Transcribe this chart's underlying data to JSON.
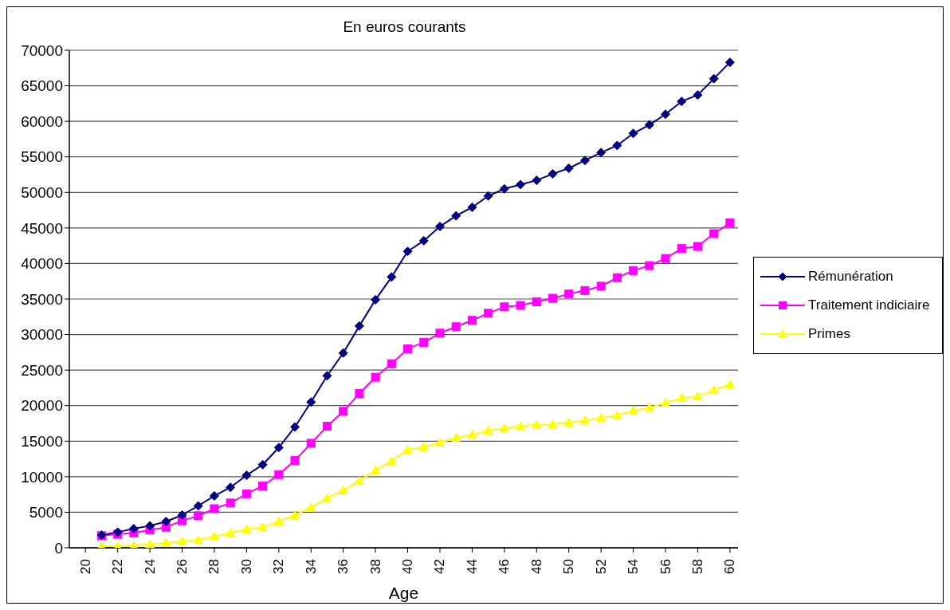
{
  "chart_data": {
    "type": "line",
    "title": "En euros courants",
    "xlabel": "Age",
    "x": [
      21,
      22,
      23,
      24,
      25,
      26,
      27,
      28,
      29,
      30,
      31,
      32,
      33,
      34,
      35,
      36,
      37,
      38,
      39,
      40,
      41,
      42,
      43,
      44,
      45,
      46,
      47,
      48,
      49,
      50,
      51,
      52,
      53,
      54,
      55,
      56,
      57,
      58,
      59,
      60
    ],
    "xlim": [
      19,
      60.5
    ],
    "xticks": [
      20,
      22,
      24,
      26,
      28,
      30,
      32,
      34,
      36,
      38,
      40,
      42,
      44,
      46,
      48,
      50,
      52,
      54,
      56,
      58,
      60
    ],
    "ylim": [
      0,
      70000
    ],
    "yticks": [
      0,
      5000,
      10000,
      15000,
      20000,
      25000,
      30000,
      35000,
      40000,
      45000,
      50000,
      55000,
      60000,
      65000,
      70000
    ],
    "grid": "y",
    "legend": "right",
    "series": [
      {
        "name": "Rémunération",
        "color": "#000080",
        "marker": "diamond",
        "values": [
          1800,
          2200,
          2700,
          3100,
          3700,
          4600,
          5900,
          7300,
          8500,
          10200,
          11700,
          14100,
          17000,
          20500,
          24200,
          27400,
          31200,
          34900,
          38100,
          41700,
          43200,
          45200,
          46700,
          47900,
          49500,
          50500,
          51100,
          51700,
          52600,
          53400,
          54500,
          55600,
          56600,
          58300,
          59500,
          61000,
          62800,
          63700,
          66000,
          68300
        ]
      },
      {
        "name": "Traitement indiciaire",
        "color": "#ff00ff",
        "marker": "square",
        "values": [
          1700,
          1900,
          2100,
          2500,
          2900,
          3800,
          4500,
          5500,
          6300,
          7600,
          8700,
          10300,
          12300,
          14700,
          17100,
          19200,
          21700,
          24000,
          25900,
          28000,
          28900,
          30200,
          31100,
          32000,
          33000,
          33900,
          34100,
          34600,
          35100,
          35700,
          36200,
          36800,
          38000,
          39000,
          39700,
          40700,
          42100,
          42400,
          44200,
          45700
        ]
      },
      {
        "name": "Primes",
        "color": "#ffff00",
        "marker": "triangle",
        "values": [
          200,
          200,
          300,
          500,
          700,
          900,
          1100,
          1600,
          2100,
          2600,
          2900,
          3700,
          4600,
          5700,
          7000,
          8100,
          9400,
          10900,
          12200,
          13800,
          14200,
          14800,
          15500,
          15900,
          16500,
          16800,
          17100,
          17300,
          17400,
          17600,
          17900,
          18300,
          18600,
          19300,
          19700,
          20400,
          21100,
          21300,
          22200,
          23000
        ]
      }
    ]
  }
}
